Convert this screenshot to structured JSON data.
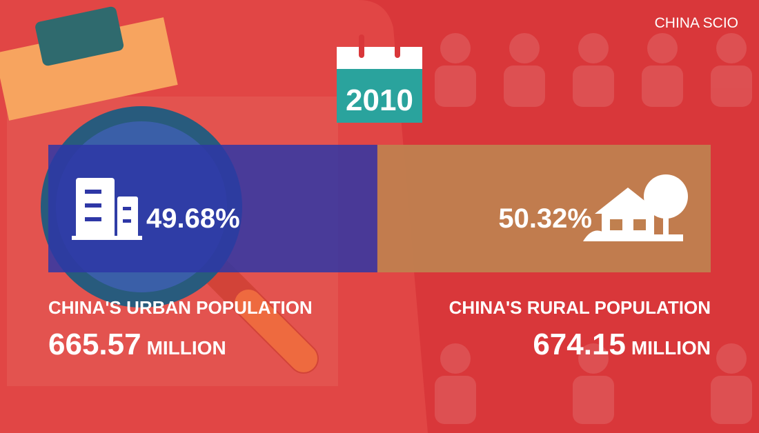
{
  "brand": "CHINA SCIO",
  "year": "2010",
  "chart_data": {
    "type": "stacked-bar",
    "xlim": [
      0,
      100
    ],
    "series": [
      {
        "name": "CHINA'S URBAN POPULATION",
        "color": "#2e37a6",
        "values": [
          49.68
        ],
        "value_labels": [
          "49.68%"
        ],
        "population": 665.57,
        "population_unit": "MILLION"
      },
      {
        "name": "CHINA'S RURAL POPULATION",
        "color": "#c0804f",
        "values": [
          50.32
        ],
        "value_labels": [
          "50.32%"
        ],
        "population": 674.15,
        "population_unit": "MILLION"
      }
    ]
  }
}
